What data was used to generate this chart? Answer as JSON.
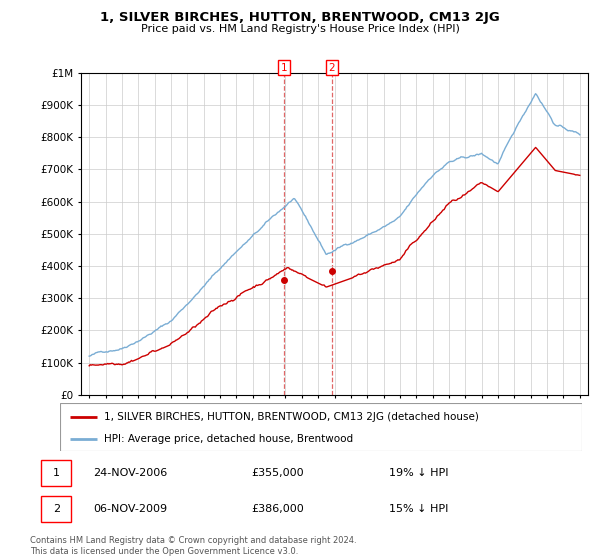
{
  "title": "1, SILVER BIRCHES, HUTTON, BRENTWOOD, CM13 2JG",
  "subtitle": "Price paid vs. HM Land Registry's House Price Index (HPI)",
  "legend_label_red": "1, SILVER BIRCHES, HUTTON, BRENTWOOD, CM13 2JG (detached house)",
  "legend_label_blue": "HPI: Average price, detached house, Brentwood",
  "transaction1_label": "1",
  "transaction1_date": "24-NOV-2006",
  "transaction1_price": "£355,000",
  "transaction1_hpi": "19% ↓ HPI",
  "transaction2_label": "2",
  "transaction2_date": "06-NOV-2009",
  "transaction2_price": "£386,000",
  "transaction2_hpi": "15% ↓ HPI",
  "copyright": "Contains HM Land Registry data © Crown copyright and database right 2024.\nThis data is licensed under the Open Government Licence v3.0.",
  "ylim": [
    0,
    1000000
  ],
  "yticks": [
    0,
    100000,
    200000,
    300000,
    400000,
    500000,
    600000,
    700000,
    800000,
    900000,
    1000000
  ],
  "ytick_labels": [
    "£0",
    "£100K",
    "£200K",
    "£300K",
    "£400K",
    "£500K",
    "£600K",
    "£700K",
    "£800K",
    "£900K",
    "£1M"
  ],
  "red_color": "#cc0000",
  "blue_color": "#7aadd4",
  "vline_color": "#cc0000",
  "background_color": "#ffffff",
  "grid_color": "#cccccc",
  "transaction1_x": 2006.9,
  "transaction2_x": 2009.85,
  "transaction1_y": 355000,
  "transaction2_y": 386000,
  "xlim_left": 1994.5,
  "xlim_right": 2025.5
}
